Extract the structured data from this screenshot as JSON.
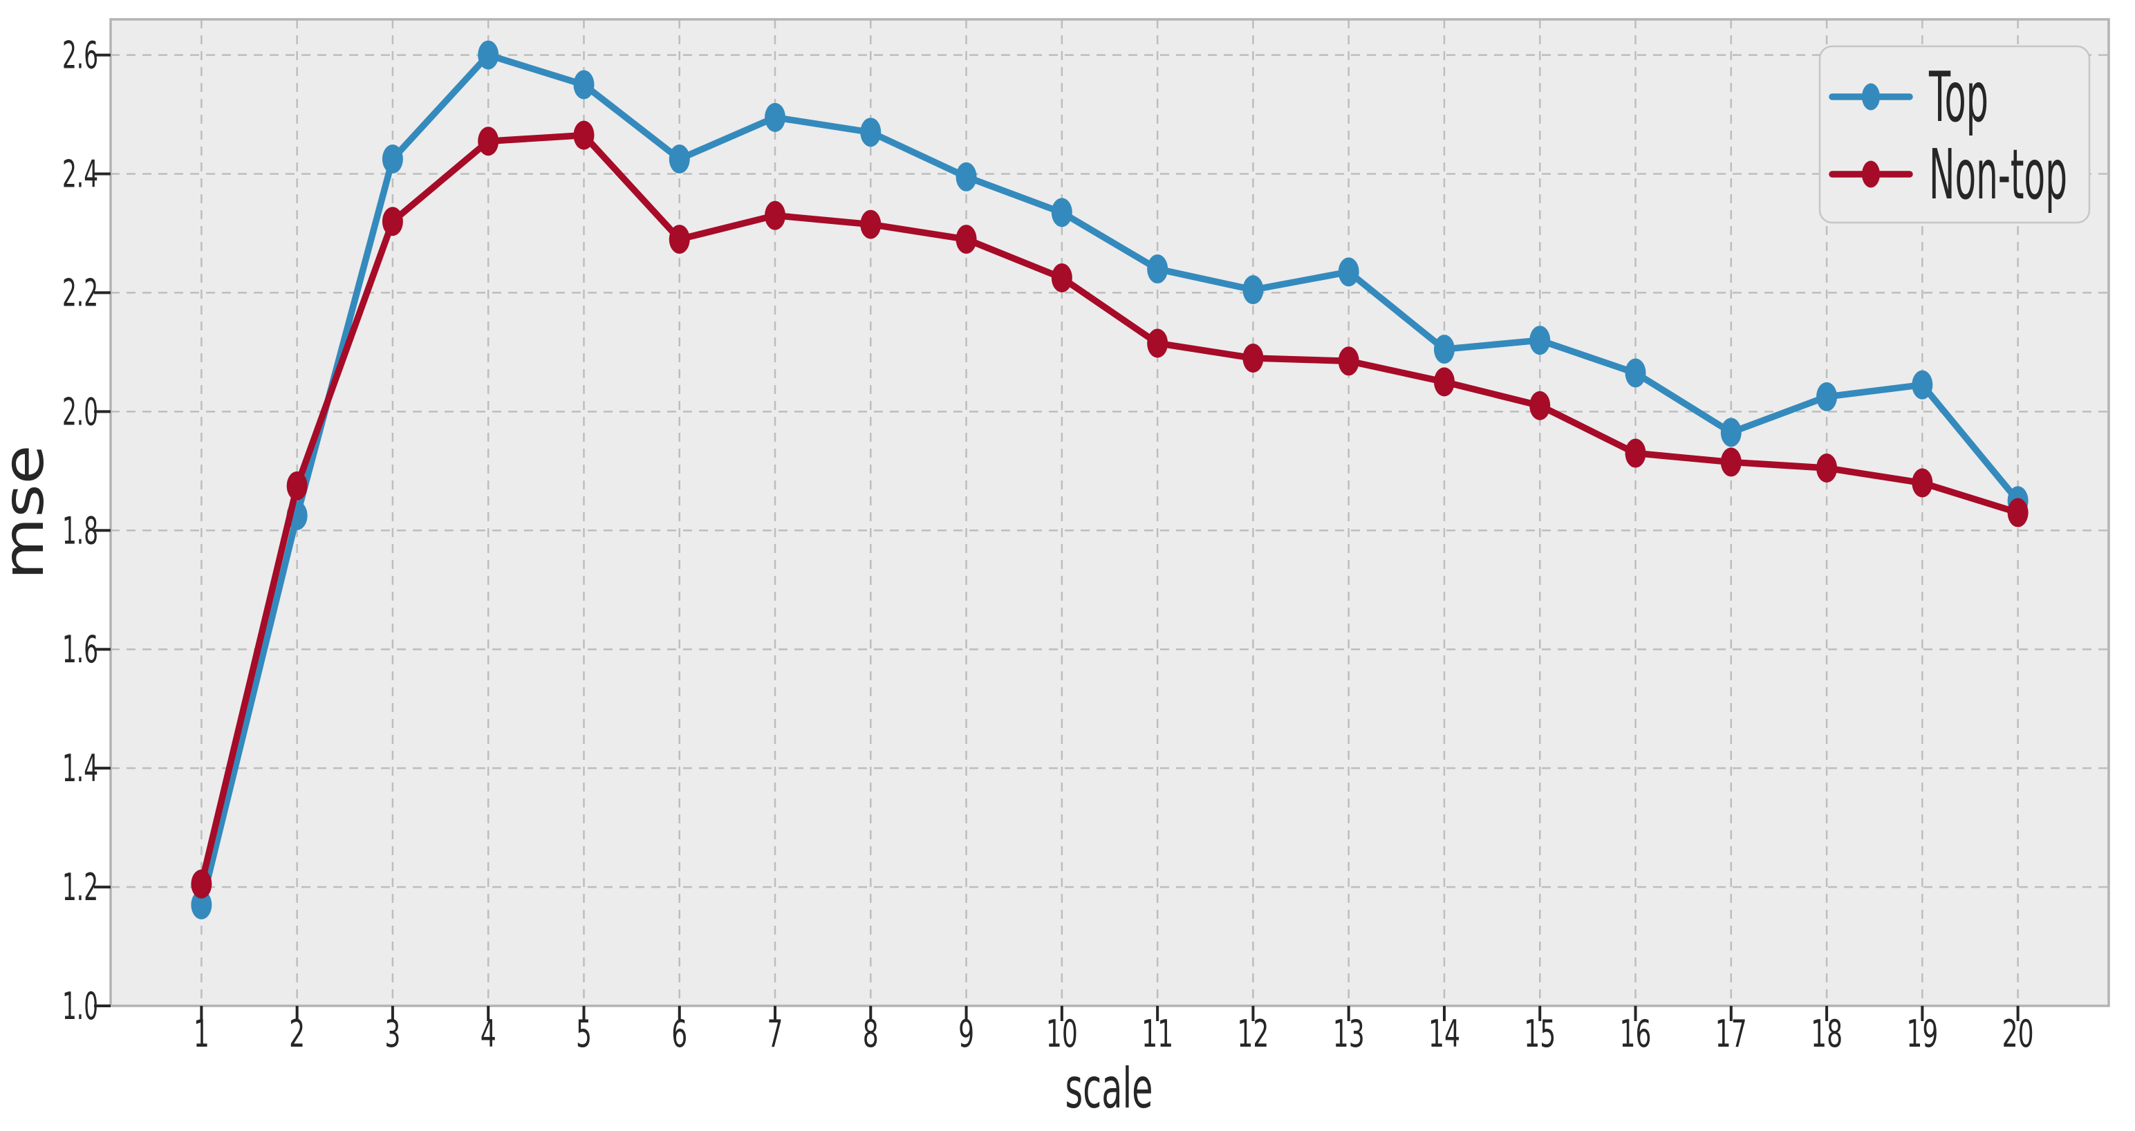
{
  "figure": {
    "background": "#ffffff",
    "plot_background": "#ececec",
    "grid_color": "#bdbdbd",
    "spine_color": "#b3b3b3",
    "tick_mark_color": "#262626",
    "tick_label_color": "#2b2b2b",
    "label_color": "#1a1a1a",
    "legend_face_color": "#ececec",
    "legend_edge_color": "#c6c6c6"
  },
  "chart_data": {
    "type": "line",
    "title": "",
    "xlabel": "scale",
    "ylabel": "mse",
    "x": [
      1,
      2,
      3,
      4,
      5,
      6,
      7,
      8,
      9,
      10,
      11,
      12,
      13,
      14,
      15,
      16,
      17,
      18,
      19,
      20
    ],
    "series": [
      {
        "name": "Top",
        "color": "#348abd",
        "values": [
          1.17,
          1.825,
          2.425,
          2.6,
          2.55,
          2.425,
          2.495,
          2.47,
          2.395,
          2.335,
          2.24,
          2.205,
          2.235,
          2.105,
          2.12,
          2.065,
          1.965,
          2.025,
          2.045,
          1.85
        ]
      },
      {
        "name": "Non-top",
        "color": "#a60b28",
        "values": [
          1.205,
          1.875,
          2.32,
          2.455,
          2.465,
          2.29,
          2.33,
          2.315,
          2.29,
          2.225,
          2.115,
          2.09,
          2.085,
          2.05,
          2.01,
          1.93,
          1.915,
          1.905,
          1.88,
          1.83
        ]
      }
    ],
    "xticks": [
      1,
      2,
      3,
      4,
      5,
      6,
      7,
      8,
      9,
      10,
      11,
      12,
      13,
      14,
      15,
      16,
      17,
      18,
      19,
      20
    ],
    "yticks": [
      1.0,
      1.2,
      1.4,
      1.6,
      1.8,
      2.0,
      2.2,
      2.4,
      2.6
    ],
    "xlim": [
      0.05,
      20.95
    ],
    "ylim": [
      1.0,
      2.66
    ],
    "grid": true,
    "grid_style": "dashed",
    "legend_position": "upper right",
    "legend": [
      "Top",
      "Non-top"
    ]
  }
}
